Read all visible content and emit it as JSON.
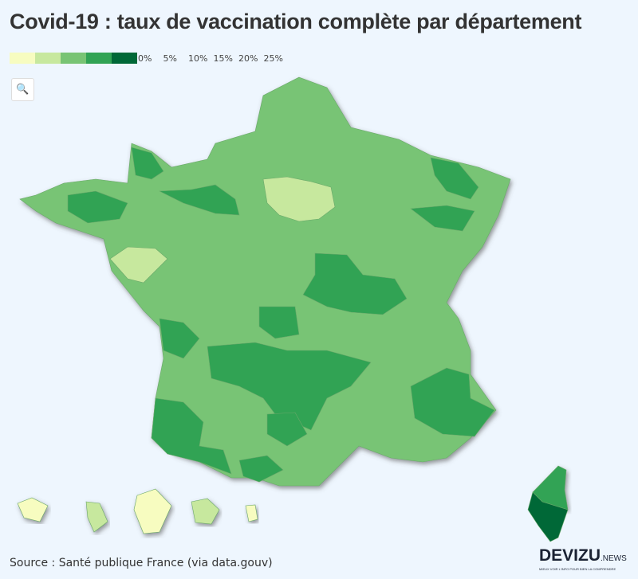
{
  "title": "Covid-19 : taux de vaccination complète par département",
  "legend": {
    "colors": [
      "#f7fcc0",
      "#c7e89e",
      "#78c474",
      "#31a354",
      "#006837"
    ],
    "labels": [
      "0%",
      "5%",
      "10%",
      "15%",
      "20%",
      "25%"
    ]
  },
  "zoom_icon": "search-icon",
  "source": "Source : Santé publique France (via data.gouv)",
  "logo": {
    "name": "DEVIZU",
    "suffix": ".NEWS",
    "tagline": "MIEUX VOIR L'INFO POUR BIEN LA COMPRENDRE"
  }
}
